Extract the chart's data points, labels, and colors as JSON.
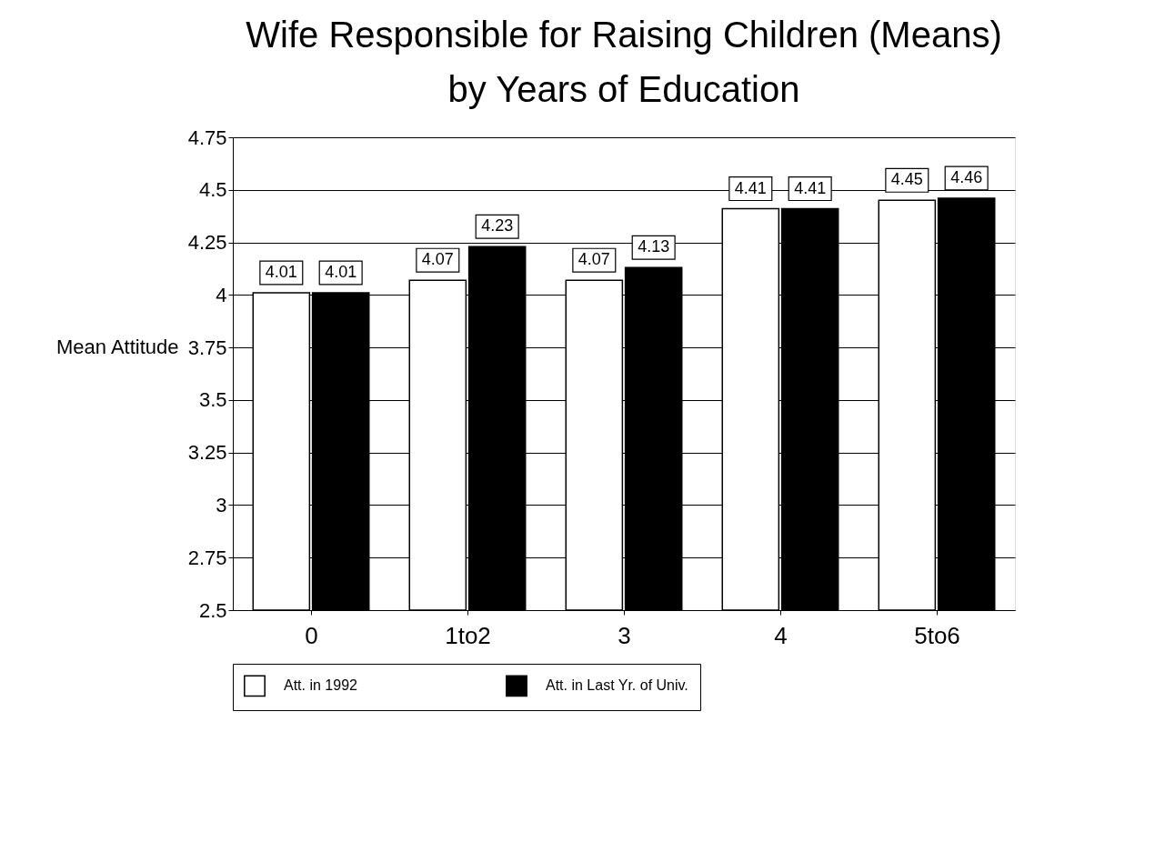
{
  "chart_data": {
    "type": "bar",
    "title": "Wife Responsible for Raising Children (Means)",
    "subtitle": "by Years of Education",
    "ylabel": "Mean Attitude",
    "categories": [
      "0",
      "1to2",
      "3",
      "4",
      "5to6"
    ],
    "series": [
      {
        "name": "Att. in 1992",
        "color": "#ffffff",
        "values": [
          4.01,
          4.07,
          4.07,
          4.41,
          4.45
        ]
      },
      {
        "name": "Att. in Last Yr. of Univ.",
        "color": "#000000",
        "values": [
          4.01,
          4.23,
          4.13,
          4.41,
          4.46
        ]
      }
    ],
    "ylim": [
      2.5,
      4.75
    ],
    "yticks": [
      2.5,
      2.75,
      3,
      3.25,
      3.5,
      3.75,
      4,
      4.25,
      4.5,
      4.75
    ],
    "grid": "y",
    "legend": "bottom",
    "data_labels": true
  }
}
